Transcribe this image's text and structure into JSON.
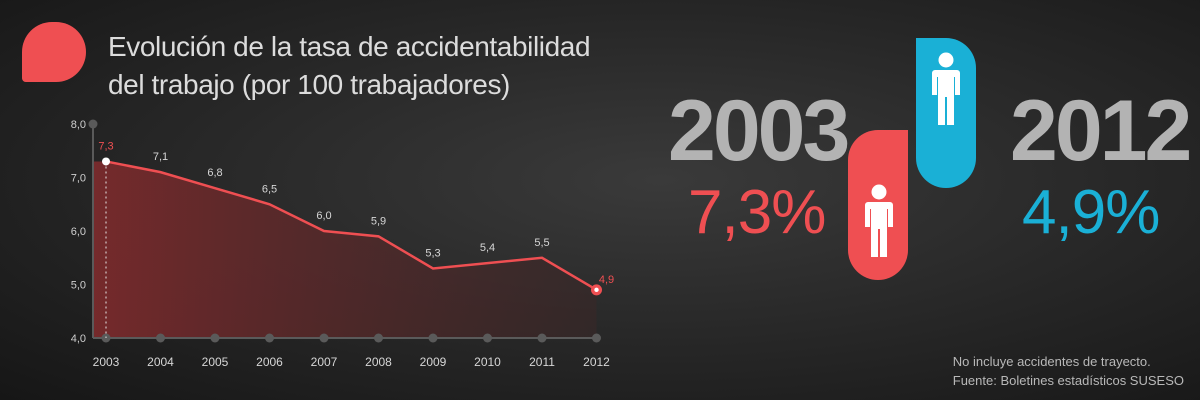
{
  "title": {
    "line1": "Evolución de la tasa de accidentabilidad",
    "line2": "del trabajo (por 100 trabajadores)"
  },
  "highlight": {
    "left": {
      "year": "2003",
      "value": "7,3%"
    },
    "right": {
      "year": "2012",
      "value": "4,9%"
    }
  },
  "footnote": {
    "line1": "No incluye accidentes de trayecto.",
    "line2": "Fuente: Boletines estadísticos SUSESO"
  },
  "colors": {
    "red": "#ef4f52",
    "blue": "#1ab0d6",
    "grey": "#b3b3b3"
  },
  "icons": [
    "speech-bubble-icon",
    "person-icon"
  ],
  "chart_data": {
    "type": "area",
    "categories": [
      "2003",
      "2004",
      "2005",
      "2006",
      "2007",
      "2008",
      "2009",
      "2010",
      "2011",
      "2012"
    ],
    "values": [
      7.3,
      7.1,
      6.8,
      6.5,
      6.0,
      5.9,
      5.3,
      5.4,
      5.5,
      4.9
    ],
    "value_labels": [
      "7,3",
      "7,1",
      "6,8",
      "6,5",
      "6,0",
      "5,9",
      "5,3",
      "5,4",
      "5,5",
      "4,9"
    ],
    "y_ticks": [
      "4,0",
      "5,0",
      "6,0",
      "7,0",
      "8,0"
    ],
    "ylim": [
      4.0,
      8.0
    ],
    "grid": false
  }
}
